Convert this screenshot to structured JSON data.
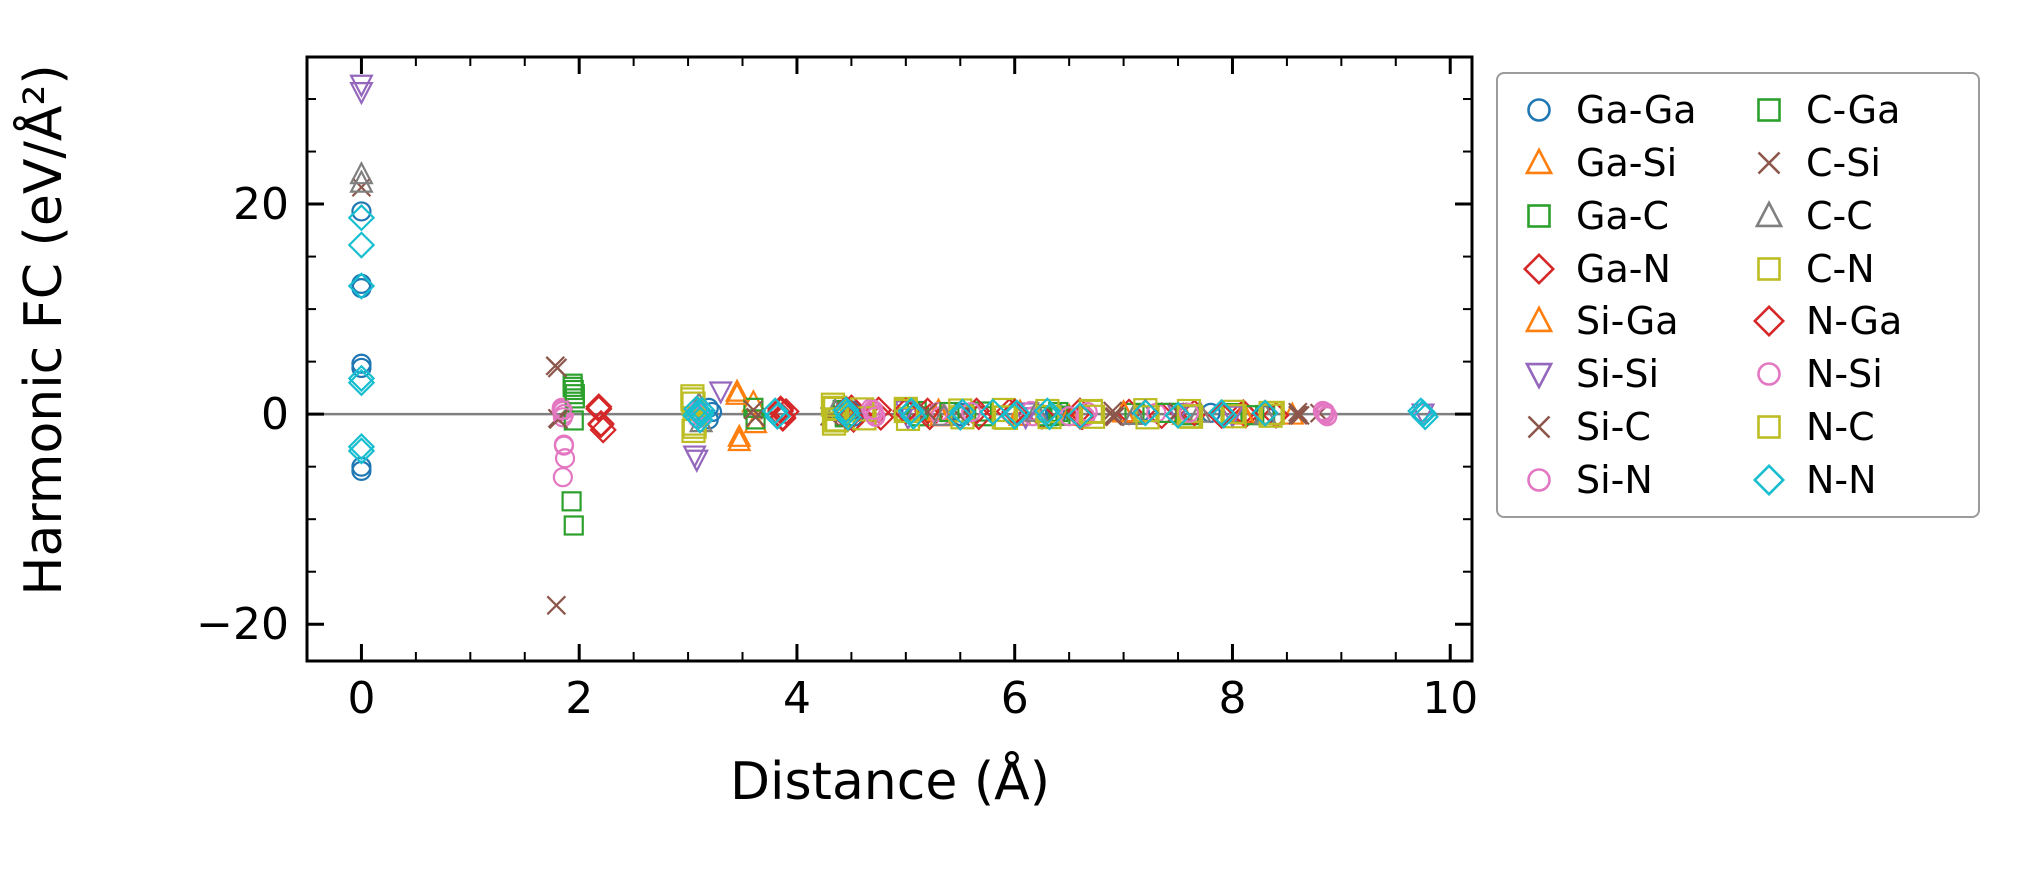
{
  "chart_data": {
    "type": "scatter",
    "title": "",
    "xlabel": "Distance (Å)",
    "ylabel": "Harmonic FC (eV/Å²)",
    "xlim": [
      -0.5,
      10.2
    ],
    "ylim": [
      -23.5,
      34
    ],
    "xticks": [
      0,
      2,
      4,
      6,
      8,
      10
    ],
    "xticklabels": [
      "0",
      "2",
      "4",
      "6",
      "8",
      "10"
    ],
    "yticks": [
      -20,
      0,
      20
    ],
    "yticklabels": [
      "−20",
      "0",
      "20"
    ],
    "x_minor_step": 0.5,
    "y_minor_step": 5,
    "grid": false,
    "zero_line": {
      "y": 0,
      "color": "#7f7f7f"
    },
    "legend": {
      "location": "outside-right",
      "columns": 2,
      "order": "column-major"
    },
    "series": [
      {
        "name": "Ga-Ga",
        "color": "#1f77b4",
        "marker": "circle",
        "size": 9,
        "points": [
          [
            0,
            19.3
          ],
          [
            0,
            12.4
          ],
          [
            0,
            12.0
          ],
          [
            0,
            4.8
          ],
          [
            0,
            4.4
          ],
          [
            0,
            -5.0
          ],
          [
            0,
            -5.4
          ],
          [
            3.19,
            0.6
          ],
          [
            3.19,
            -0.5
          ],
          [
            3.22,
            0.2
          ],
          [
            4.5,
            0.35
          ],
          [
            4.52,
            -0.25
          ],
          [
            5.05,
            0.2
          ],
          [
            5.5,
            0.15
          ],
          [
            5.51,
            -0.2
          ],
          [
            6.37,
            0.2
          ],
          [
            6.38,
            -0.15
          ],
          [
            7.15,
            0.1
          ],
          [
            7.8,
            0.12
          ],
          [
            8.3,
            -0.1
          ],
          [
            9.75,
            0.1
          ]
        ]
      },
      {
        "name": "Ga-Si",
        "color": "#ff7f0e",
        "marker": "triangle-up",
        "size": 9,
        "points": [
          [
            3.45,
            2.1
          ],
          [
            3.47,
            -2.6
          ],
          [
            3.6,
            1.1
          ],
          [
            3.62,
            -0.9
          ],
          [
            5.3,
            0.3
          ],
          [
            5.32,
            -0.25
          ],
          [
            6.05,
            0.2
          ],
          [
            6.5,
            -0.2
          ],
          [
            7.0,
            0.15
          ],
          [
            7.55,
            -0.1
          ],
          [
            8.1,
            0.1
          ],
          [
            8.55,
            -0.08
          ]
        ]
      },
      {
        "name": "Ga-C",
        "color": "#2ca02c",
        "marker": "square",
        "size": 9,
        "points": [
          [
            1.94,
            2.9
          ],
          [
            1.95,
            2.3
          ],
          [
            1.96,
            1.5
          ],
          [
            1.93,
            -8.3
          ],
          [
            1.95,
            -10.6
          ],
          [
            3.6,
            0.6
          ],
          [
            3.62,
            -0.5
          ],
          [
            4.42,
            0.4
          ],
          [
            4.44,
            -0.3
          ],
          [
            5.1,
            0.3
          ],
          [
            5.12,
            -0.2
          ],
          [
            5.7,
            0.25
          ],
          [
            5.72,
            -0.2
          ],
          [
            6.4,
            0.2
          ],
          [
            6.42,
            -0.15
          ],
          [
            7.1,
            0.12
          ],
          [
            7.6,
            -0.1
          ],
          [
            8.0,
            0.1
          ],
          [
            8.3,
            -0.08
          ]
        ]
      },
      {
        "name": "Ga-N",
        "color": "#d62728",
        "marker": "diamond",
        "size": 9,
        "points": [
          [
            2.18,
            0.7
          ],
          [
            2.2,
            -0.9
          ],
          [
            2.22,
            -1.5
          ],
          [
            3.85,
            0.5
          ],
          [
            3.87,
            -0.4
          ],
          [
            3.9,
            0.25
          ],
          [
            4.5,
            0.6
          ],
          [
            4.52,
            -0.5
          ],
          [
            4.75,
            0.4
          ],
          [
            4.77,
            -0.3
          ],
          [
            5.2,
            0.3
          ],
          [
            5.22,
            -0.25
          ],
          [
            5.65,
            0.3
          ],
          [
            5.67,
            -0.25
          ],
          [
            5.95,
            0.25
          ],
          [
            6.25,
            -0.2
          ],
          [
            6.6,
            0.3
          ],
          [
            6.62,
            -0.25
          ],
          [
            7.05,
            0.2
          ],
          [
            7.35,
            -0.15
          ],
          [
            7.65,
            0.12
          ],
          [
            8.1,
            0.15
          ],
          [
            8.12,
            -0.1
          ],
          [
            8.4,
            -0.1
          ]
        ]
      },
      {
        "name": "Si-Ga",
        "color": "#ff7f0e",
        "marker": "triangle-up",
        "size": 9,
        "points": [
          [
            3.45,
            1.8
          ],
          [
            3.47,
            -2.2
          ],
          [
            5.3,
            0.25
          ],
          [
            6.05,
            -0.2
          ],
          [
            7.0,
            0.12
          ],
          [
            8.1,
            -0.08
          ]
        ]
      },
      {
        "name": "Si-Si",
        "color": "#9467bd",
        "marker": "triangle-down",
        "size": 9,
        "points": [
          [
            0,
            31.4
          ],
          [
            0,
            30.7
          ],
          [
            3.06,
            -3.9
          ],
          [
            3.08,
            -4.3
          ],
          [
            3.3,
            2.2
          ],
          [
            5.0,
            0.4
          ],
          [
            5.02,
            -0.3
          ],
          [
            6.1,
            -0.25
          ],
          [
            6.12,
            0.2
          ],
          [
            7.5,
            0.15
          ],
          [
            8.0,
            -0.1
          ],
          [
            9.75,
            0.1
          ]
        ]
      },
      {
        "name": "Si-C",
        "color": "#8c564b",
        "marker": "x",
        "size": 9,
        "points": [
          [
            0,
            21.6
          ],
          [
            1.78,
            4.6
          ],
          [
            1.8,
            -0.4
          ],
          [
            1.79,
            -18.2
          ],
          [
            3.6,
            0.4
          ],
          [
            3.62,
            -0.3
          ],
          [
            4.6,
            0.3
          ],
          [
            5.5,
            -0.2
          ],
          [
            6.9,
            0.3
          ],
          [
            6.92,
            -0.25
          ],
          [
            7.5,
            0.2
          ],
          [
            8.6,
            0.18
          ],
          [
            8.62,
            -0.12
          ],
          [
            8.8,
            0.1
          ]
        ]
      },
      {
        "name": "Si-N",
        "color": "#e377c2",
        "marker": "circle",
        "size": 9,
        "points": [
          [
            1.84,
            0.6
          ],
          [
            1.85,
            0.3
          ],
          [
            1.86,
            0.0
          ],
          [
            1.85,
            -0.3
          ],
          [
            1.86,
            -3.0
          ],
          [
            1.87,
            -4.2
          ],
          [
            1.85,
            -6.0
          ],
          [
            3.08,
            0.4
          ],
          [
            3.1,
            0.15
          ],
          [
            3.12,
            -0.15
          ],
          [
            3.09,
            -0.4
          ],
          [
            3.11,
            0.0
          ],
          [
            4.68,
            0.55
          ],
          [
            4.7,
            0.25
          ],
          [
            4.72,
            -0.2
          ],
          [
            4.7,
            0.0
          ],
          [
            5.3,
            0.2
          ],
          [
            5.32,
            -0.2
          ],
          [
            6.15,
            0.3
          ],
          [
            6.17,
            -0.2
          ],
          [
            6.65,
            -0.25
          ],
          [
            6.67,
            0.2
          ],
          [
            7.3,
            0.12
          ],
          [
            7.9,
            -0.1
          ],
          [
            8.83,
            0.3
          ],
          [
            8.85,
            0.0
          ],
          [
            8.87,
            -0.2
          ],
          [
            9.75,
            0.08
          ]
        ]
      },
      {
        "name": "C-Ga",
        "color": "#2ca02c",
        "marker": "square",
        "size": 9,
        "points": [
          [
            1.94,
            2.6
          ],
          [
            1.96,
            1.9
          ],
          [
            1.95,
            -0.6
          ],
          [
            4.42,
            0.3
          ],
          [
            4.44,
            -0.2
          ],
          [
            5.4,
            0.2
          ],
          [
            6.3,
            -0.2
          ],
          [
            7.4,
            0.12
          ],
          [
            8.2,
            -0.1
          ]
        ]
      },
      {
        "name": "C-Si",
        "color": "#8c564b",
        "marker": "x",
        "size": 9,
        "points": [
          [
            1.8,
            4.4
          ],
          [
            1.81,
            -0.5
          ],
          [
            4.3,
            -0.2
          ],
          [
            5.2,
            0.2
          ],
          [
            6.9,
            -0.2
          ],
          [
            7.5,
            0.15
          ],
          [
            8.6,
            -0.1
          ]
        ]
      },
      {
        "name": "C-C",
        "color": "#7f7f7f",
        "marker": "triangle-up",
        "size": 9,
        "points": [
          [
            0,
            22.8
          ],
          [
            0,
            22.0
          ],
          [
            3.1,
            0.9
          ],
          [
            3.12,
            -0.8
          ],
          [
            4.35,
            0.3
          ],
          [
            5.35,
            -0.2
          ],
          [
            6.2,
            0.18
          ],
          [
            7.1,
            -0.12
          ],
          [
            7.7,
            0.1
          ],
          [
            8.3,
            -0.08
          ]
        ]
      },
      {
        "name": "C-N",
        "color": "#bcbd22",
        "marker": "square",
        "size": 11,
        "points": [
          [
            3.04,
            1.7
          ],
          [
            3.05,
            1.0
          ],
          [
            3.06,
            -0.9
          ],
          [
            3.05,
            -1.6
          ],
          [
            4.33,
            0.9
          ],
          [
            4.35,
            0.5
          ],
          [
            4.36,
            -0.6
          ],
          [
            4.34,
            -0.9
          ],
          [
            4.6,
            0.45
          ],
          [
            4.62,
            -0.4
          ],
          [
            5.0,
            0.5
          ],
          [
            5.02,
            -0.45
          ],
          [
            5.5,
            0.35
          ],
          [
            5.52,
            -0.3
          ],
          [
            5.9,
            0.4
          ],
          [
            5.92,
            -0.35
          ],
          [
            6.3,
            0.3
          ],
          [
            6.32,
            -0.28
          ],
          [
            6.7,
            0.3
          ],
          [
            6.72,
            -0.25
          ],
          [
            7.2,
            0.38
          ],
          [
            7.22,
            -0.3
          ],
          [
            7.6,
            0.3
          ],
          [
            7.62,
            -0.25
          ],
          [
            8.0,
            0.22
          ],
          [
            8.02,
            -0.2
          ],
          [
            8.35,
            -0.15
          ],
          [
            8.37,
            0.12
          ]
        ]
      },
      {
        "name": "N-Ga",
        "color": "#d62728",
        "marker": "diamond",
        "size": 9,
        "points": [
          [
            2.18,
            0.5
          ],
          [
            2.2,
            -1.0
          ],
          [
            3.85,
            0.3
          ],
          [
            3.87,
            -0.3
          ],
          [
            4.45,
            0.5
          ],
          [
            4.47,
            -0.4
          ],
          [
            5.0,
            0.3
          ],
          [
            5.5,
            -0.25
          ],
          [
            6.0,
            0.2
          ],
          [
            6.6,
            -0.2
          ],
          [
            7.2,
            0.15
          ],
          [
            7.9,
            -0.12
          ],
          [
            8.3,
            0.1
          ]
        ]
      },
      {
        "name": "N-Si",
        "color": "#e377c2",
        "marker": "circle",
        "size": 9,
        "points": [
          [
            1.84,
            0.4
          ],
          [
            1.86,
            -2.9
          ],
          [
            3.1,
            0.3
          ],
          [
            3.12,
            -0.2
          ],
          [
            4.7,
            0.4
          ],
          [
            4.72,
            -0.25
          ],
          [
            5.6,
            0.2
          ],
          [
            6.5,
            -0.2
          ],
          [
            7.6,
            0.12
          ],
          [
            8.85,
            0.2
          ],
          [
            8.87,
            -0.15
          ]
        ]
      },
      {
        "name": "N-C",
        "color": "#bcbd22",
        "marker": "square",
        "size": 11,
        "points": [
          [
            3.04,
            1.4
          ],
          [
            3.06,
            -1.2
          ],
          [
            4.35,
            0.6
          ],
          [
            4.37,
            -0.5
          ],
          [
            5.0,
            0.3
          ],
          [
            5.9,
            -0.3
          ],
          [
            6.7,
            0.22
          ],
          [
            7.6,
            -0.2
          ],
          [
            8.35,
            0.1
          ]
        ]
      },
      {
        "name": "N-N",
        "color": "#17becf",
        "marker": "diamond",
        "size": 9,
        "points": [
          [
            0,
            18.7
          ],
          [
            0,
            16.1
          ],
          [
            0,
            12.2
          ],
          [
            0,
            3.4
          ],
          [
            0,
            3.0
          ],
          [
            0,
            -3.1
          ],
          [
            0,
            -3.5
          ],
          [
            3.08,
            0.5
          ],
          [
            3.1,
            0.25
          ],
          [
            3.12,
            0.0
          ],
          [
            3.09,
            -0.3
          ],
          [
            3.11,
            -0.55
          ],
          [
            3.1,
            0.1
          ],
          [
            3.07,
            -0.1
          ],
          [
            3.13,
            0.35
          ],
          [
            3.8,
            0.3
          ],
          [
            3.82,
            -0.2
          ],
          [
            4.45,
            0.4
          ],
          [
            4.47,
            -0.3
          ],
          [
            4.46,
            0.1
          ],
          [
            5.05,
            0.3
          ],
          [
            5.07,
            -0.2
          ],
          [
            5.5,
            -0.3
          ],
          [
            5.52,
            0.2
          ],
          [
            5.8,
            0.2
          ],
          [
            6.0,
            -0.2
          ],
          [
            6.02,
            0.12
          ],
          [
            6.3,
            0.3
          ],
          [
            6.32,
            -0.25
          ],
          [
            6.6,
            -0.15
          ],
          [
            7.2,
            0.12
          ],
          [
            7.5,
            -0.1
          ],
          [
            7.9,
            0.15
          ],
          [
            7.92,
            -0.1
          ],
          [
            8.3,
            0.1
          ],
          [
            9.73,
            0.3
          ],
          [
            9.75,
            0.0
          ],
          [
            9.77,
            -0.25
          ],
          [
            9.75,
            0.12
          ]
        ]
      }
    ]
  }
}
